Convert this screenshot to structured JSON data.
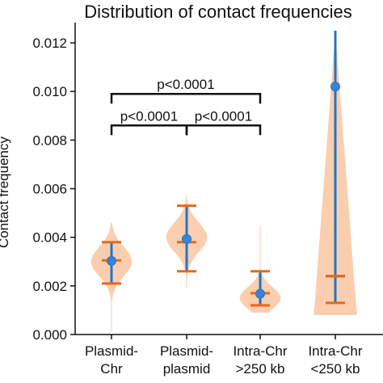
{
  "chart_data": {
    "type": "violin",
    "title": "Distribution of contact frequencies",
    "ylabel": "Contact frequency",
    "xlabel": "",
    "ylim": [
      0,
      0.0125
    ],
    "yticks": [
      "0.000",
      "0.002",
      "0.004",
      "0.006",
      "0.008",
      "0.010",
      "0.012"
    ],
    "ytick_values": [
      0,
      0.002,
      0.004,
      0.006,
      0.008,
      0.01,
      0.012
    ],
    "grid": false,
    "colors": {
      "violin": "#f9c9a6",
      "range": "#1f77c4",
      "marker": "#3b82d6",
      "caps": "#e8681b"
    },
    "categories": [
      {
        "label_lines": [
          "Plasmid-",
          "Chr"
        ],
        "mean": 0.00303,
        "median": 0.00305,
        "min": 0.0021,
        "max": 0.0038,
        "p_low": 0.0021,
        "p_high": 0.0038,
        "extent": [
          0.0001,
          0.0046
        ],
        "mode": 0.003,
        "width": 0.55
      },
      {
        "label_lines": [
          "Plasmid-",
          "plasmid"
        ],
        "mean": 0.00393,
        "median": 0.0038,
        "min": 0.0026,
        "max": 0.0053,
        "p_low": 0.0026,
        "p_high": 0.0053,
        "extent": [
          0.0019,
          0.0057
        ],
        "mode": 0.004,
        "width": 0.55
      },
      {
        "label_lines": [
          "Intra-Chr",
          ">250 kb"
        ],
        "mean": 0.00168,
        "median": 0.0017,
        "min": 0.0012,
        "max": 0.0026,
        "p_low": 0.0012,
        "p_high": 0.0026,
        "extent": [
          0.0009,
          0.0045
        ],
        "mode": 0.0015,
        "width": 0.55
      },
      {
        "label_lines": [
          "Intra-Chr",
          "<250 kb"
        ],
        "mean": 0.0102,
        "median": 0.0024,
        "min": 0.0013,
        "max": 0.0125,
        "p_low": 0.0013,
        "p_high": 0.0024,
        "extent": [
          0.0008,
          0.0125
        ],
        "mode": 0.0012,
        "width": 0.55
      }
    ],
    "significance": [
      {
        "from": 0,
        "to": 1,
        "text": "p<0.0001",
        "level": 0.0086
      },
      {
        "from": 1,
        "to": 2,
        "text": "p<0.0001",
        "level": 0.0086
      },
      {
        "from": 0,
        "to": 2,
        "text": "p<0.0001",
        "level": 0.0099
      }
    ]
  }
}
